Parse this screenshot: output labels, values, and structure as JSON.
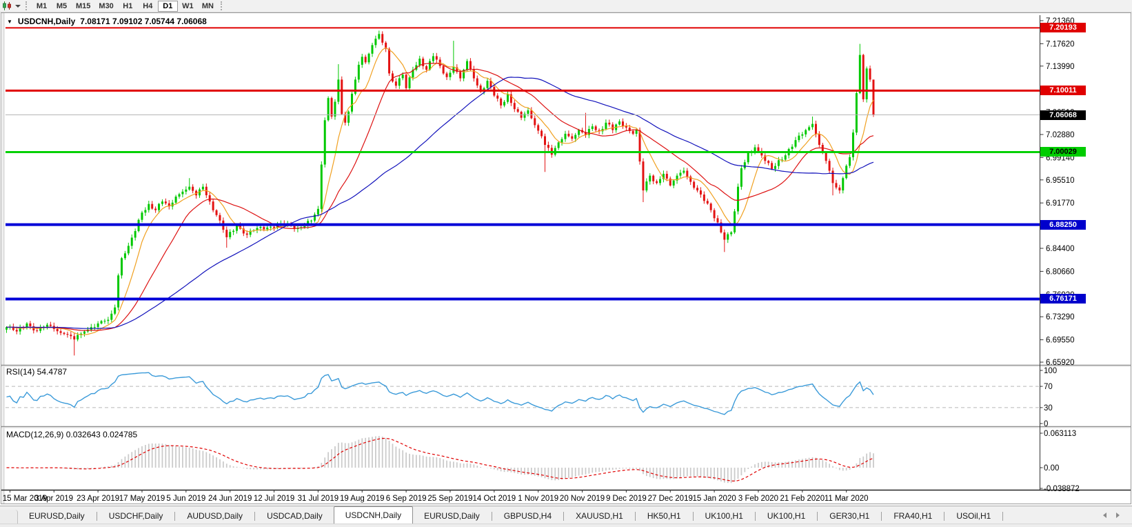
{
  "icons": {
    "collapse_triangle": "▼"
  },
  "toolbar": {
    "timeframes": [
      {
        "label": "M1",
        "active": false
      },
      {
        "label": "M5",
        "active": false
      },
      {
        "label": "M15",
        "active": false
      },
      {
        "label": "M30",
        "active": false
      },
      {
        "label": "H1",
        "active": false
      },
      {
        "label": "H4",
        "active": false
      },
      {
        "label": "D1",
        "active": true
      },
      {
        "label": "W1",
        "active": false
      },
      {
        "label": "MN",
        "active": false
      }
    ]
  },
  "tabs": {
    "items": [
      {
        "label": "EURUSD,Daily",
        "active": false
      },
      {
        "label": "USDCHF,Daily",
        "active": false
      },
      {
        "label": "AUDUSD,Daily",
        "active": false
      },
      {
        "label": "USDCAD,Daily",
        "active": false
      },
      {
        "label": "USDCNH,Daily",
        "active": true
      },
      {
        "label": "EURUSD,Daily",
        "active": false
      },
      {
        "label": "GBPUSD,H4",
        "active": false
      },
      {
        "label": "XAUUSD,H1",
        "active": false
      },
      {
        "label": "HK50,H1",
        "active": false
      },
      {
        "label": "UK100,H1",
        "active": false
      },
      {
        "label": "UK100,H1",
        "active": false
      },
      {
        "label": "GER30,H1",
        "active": false
      },
      {
        "label": "FRA40,H1",
        "active": false
      },
      {
        "label": "USOil,H1",
        "active": false
      }
    ]
  },
  "chart_data": {
    "type": "candlestick",
    "title": "USDCNH,Daily",
    "last_ohlc_label": "7.08171 7.09102 7.05744 7.06068",
    "last_ohlc": {
      "open": 7.08171,
      "high": 7.09102,
      "low": 7.05744,
      "close": 7.06068
    },
    "bull_color": "#00c800",
    "bear_color": "#e31212",
    "background": "#ffffff",
    "grid": "none",
    "bar_count": 257,
    "price_ticks": [
      "7.21360",
      "7.17620",
      "7.13990",
      "7.10250",
      "7.06510",
      "7.02880",
      "6.99140",
      "6.95510",
      "6.91770",
      "6.88030",
      "6.84400",
      "6.80660",
      "6.76920",
      "6.73290",
      "6.69550",
      "6.65920"
    ],
    "date_labels": [
      {
        "label": "15 Mar 2019",
        "bar": 1
      },
      {
        "label": "3 Apr 2019",
        "bar": 14
      },
      {
        "label": "23 Apr 2019",
        "bar": 27
      },
      {
        "label": "17 May 2019",
        "bar": 40
      },
      {
        "label": "5 Jun 2019",
        "bar": 53
      },
      {
        "label": "24 Jun 2019",
        "bar": 66
      },
      {
        "label": "12 Jul 2019",
        "bar": 79
      },
      {
        "label": "31 Jul 2019",
        "bar": 92
      },
      {
        "label": "19 Aug 2019",
        "bar": 105
      },
      {
        "label": "6 Sep 2019",
        "bar": 118
      },
      {
        "label": "25 Sep 2019",
        "bar": 131
      },
      {
        "label": "14 Oct 2019",
        "bar": 144
      },
      {
        "label": "1 Nov 2019",
        "bar": 157
      },
      {
        "label": "20 Nov 2019",
        "bar": 170
      },
      {
        "label": "9 Dec 2019",
        "bar": 183
      },
      {
        "label": "27 Dec 2019",
        "bar": 196
      },
      {
        "label": "15 Jan 2020",
        "bar": 209
      },
      {
        "label": "3 Feb 2020",
        "bar": 222
      },
      {
        "label": "21 Feb 2020",
        "bar": 235
      },
      {
        "label": "11 Mar 2020",
        "bar": 248
      }
    ],
    "horizontal_lines": [
      {
        "price": 7.20193,
        "label": "7.20193",
        "color": "#e00000",
        "thickness": 2,
        "badge_bg": "#e00000",
        "badge_fg": "#ffffff"
      },
      {
        "price": 7.10011,
        "label": "7.10011",
        "color": "#e00000",
        "thickness": 3,
        "badge_bg": "#e00000",
        "badge_fg": "#ffffff"
      },
      {
        "price": 7.06068,
        "label": "7.06068",
        "color": "#b4b4b4",
        "thickness": 1,
        "badge_bg": "#000000",
        "badge_fg": "#ffffff"
      },
      {
        "price": 7.00029,
        "label": "7.00029",
        "color": "#00d000",
        "thickness": 3,
        "badge_bg": "#00cc00",
        "badge_fg": "#000000"
      },
      {
        "price": 6.8825,
        "label": "6.88250",
        "color": "#0000d8",
        "thickness": 4,
        "badge_bg": "#0000cc",
        "badge_fg": "#ffffff"
      },
      {
        "price": 6.76171,
        "label": "6.76171",
        "color": "#0000d8",
        "thickness": 4,
        "badge_bg": "#0000cc",
        "badge_fg": "#ffffff"
      }
    ],
    "moving_averages": [
      {
        "period": 8,
        "color": "#f0a020"
      },
      {
        "period": 21,
        "color": "#dd1111"
      },
      {
        "period": 55,
        "color": "#1111bb"
      }
    ],
    "anchors": [
      [
        0,
        6.716
      ],
      [
        3,
        6.709
      ],
      [
        6,
        6.722
      ],
      [
        9,
        6.71
      ],
      [
        12,
        6.72
      ],
      [
        14,
        6.713
      ],
      [
        17,
        6.705
      ],
      [
        20,
        6.696
      ],
      [
        23,
        6.709
      ],
      [
        25,
        6.716
      ],
      [
        27,
        6.722
      ],
      [
        30,
        6.728
      ],
      [
        32,
        6.748
      ],
      [
        33,
        6.8
      ],
      [
        34,
        6.828
      ],
      [
        36,
        6.848
      ],
      [
        38,
        6.872
      ],
      [
        40,
        6.902
      ],
      [
        42,
        6.916
      ],
      [
        44,
        6.906
      ],
      [
        46,
        6.92
      ],
      [
        48,
        6.912
      ],
      [
        50,
        6.928
      ],
      [
        52,
        6.936
      ],
      [
        54,
        6.944
      ],
      [
        56,
        6.93
      ],
      [
        58,
        6.944
      ],
      [
        60,
        6.92
      ],
      [
        62,
        6.898
      ],
      [
        65,
        6.862
      ],
      [
        68,
        6.882
      ],
      [
        71,
        6.866
      ],
      [
        74,
        6.877
      ],
      [
        78,
        6.879
      ],
      [
        82,
        6.883
      ],
      [
        86,
        6.877
      ],
      [
        90,
        6.889
      ],
      [
        92,
        6.908
      ],
      [
        93,
        6.98
      ],
      [
        94,
        7.052
      ],
      [
        95,
        7.088
      ],
      [
        96,
        7.058
      ],
      [
        97,
        7.082
      ],
      [
        98,
        7.118
      ],
      [
        99,
        7.062
      ],
      [
        100,
        7.048
      ],
      [
        101,
        7.066
      ],
      [
        102,
        7.095
      ],
      [
        103,
        7.118
      ],
      [
        104,
        7.142
      ],
      [
        105,
        7.155
      ],
      [
        106,
        7.146
      ],
      [
        107,
        7.16
      ],
      [
        108,
        7.174
      ],
      [
        110,
        7.192
      ],
      [
        112,
        7.168
      ],
      [
        113,
        7.128
      ],
      [
        115,
        7.108
      ],
      [
        117,
        7.126
      ],
      [
        118,
        7.104
      ],
      [
        120,
        7.134
      ],
      [
        122,
        7.152
      ],
      [
        124,
        7.134
      ],
      [
        126,
        7.156
      ],
      [
        128,
        7.14
      ],
      [
        130,
        7.122
      ],
      [
        132,
        7.138
      ],
      [
        134,
        7.12
      ],
      [
        136,
        7.148
      ],
      [
        138,
        7.12
      ],
      [
        140,
        7.098
      ],
      [
        142,
        7.116
      ],
      [
        144,
        7.092
      ],
      [
        146,
        7.076
      ],
      [
        148,
        7.094
      ],
      [
        150,
        7.07
      ],
      [
        152,
        7.056
      ],
      [
        154,
        7.068
      ],
      [
        156,
        7.044
      ],
      [
        158,
        7.026
      ],
      [
        159,
        7.012
      ],
      [
        161,
        6.996
      ],
      [
        163,
        7.016
      ],
      [
        165,
        7.03
      ],
      [
        167,
        7.022
      ],
      [
        169,
        7.036
      ],
      [
        171,
        7.028
      ],
      [
        173,
        7.042
      ],
      [
        175,
        7.034
      ],
      [
        177,
        7.048
      ],
      [
        179,
        7.036
      ],
      [
        181,
        7.05
      ],
      [
        183,
        7.04
      ],
      [
        185,
        7.03
      ],
      [
        186,
        7.036
      ],
      [
        187,
        6.985
      ],
      [
        188,
        6.938
      ],
      [
        190,
        6.962
      ],
      [
        192,
        6.95
      ],
      [
        194,
        6.965
      ],
      [
        196,
        6.946
      ],
      [
        198,
        6.962
      ],
      [
        200,
        6.97
      ],
      [
        202,
        6.952
      ],
      [
        204,
        6.938
      ],
      [
        206,
        6.921
      ],
      [
        208,
        6.906
      ],
      [
        210,
        6.886
      ],
      [
        212,
        6.858
      ],
      [
        214,
        6.87
      ],
      [
        215,
        6.904
      ],
      [
        216,
        6.944
      ],
      [
        217,
        6.974
      ],
      [
        219,
        6.999
      ],
      [
        221,
        7.008
      ],
      [
        222,
        7.002
      ],
      [
        224,
        6.986
      ],
      [
        226,
        6.973
      ],
      [
        228,
        6.987
      ],
      [
        230,
        6.995
      ],
      [
        232,
        7.009
      ],
      [
        234,
        7.027
      ],
      [
        236,
        7.036
      ],
      [
        238,
        7.046
      ],
      [
        240,
        7.012
      ],
      [
        242,
        6.986
      ],
      [
        244,
        6.95
      ],
      [
        246,
        6.938
      ],
      [
        247,
        6.958
      ],
      [
        248,
        6.978
      ],
      [
        249,
        6.992
      ],
      [
        250,
        7.032
      ],
      [
        251,
        7.096
      ],
      [
        252,
        7.158
      ],
      [
        253,
        7.086
      ],
      [
        254,
        7.136
      ],
      [
        255,
        7.118
      ],
      [
        256,
        7.061
      ]
    ],
    "wick_overrides": {
      "20": [
        null,
        6.67
      ],
      "54": [
        6.958,
        null
      ],
      "65": [
        null,
        6.845
      ],
      "98": [
        7.143,
        null
      ],
      "110": [
        7.1975,
        null
      ],
      "132": [
        7.181,
        null
      ],
      "159": [
        null,
        6.968
      ],
      "171": [
        7.064,
        null
      ],
      "188": [
        null,
        6.919
      ],
      "212": [
        null,
        6.838
      ],
      "238": [
        7.058,
        null
      ],
      "244": [
        null,
        6.93
      ],
      "252": [
        7.176,
        null
      ],
      "256": [
        7.091,
        7.0574
      ]
    },
    "sub_charts": {
      "rsi": {
        "label": "RSI(14) 54.4787",
        "period": 14,
        "value": 54.4787,
        "levels": [
          "100",
          "70",
          "30",
          "0"
        ],
        "level_lines": [
          70,
          30
        ],
        "line_color": "#3a9ad9"
      },
      "macd": {
        "label": "MACD(12,26,9) 0.032643 0.024785",
        "params": [
          12,
          26,
          9
        ],
        "values": [
          0.032643,
          0.024785
        ],
        "axis_labels": [
          "0.063113",
          "0.00",
          "-0.038872"
        ],
        "axis_values": [
          0.063113,
          0.0,
          -0.038872
        ],
        "histogram_color": "#cbcbcb",
        "signal_color": "#e00000"
      }
    }
  }
}
